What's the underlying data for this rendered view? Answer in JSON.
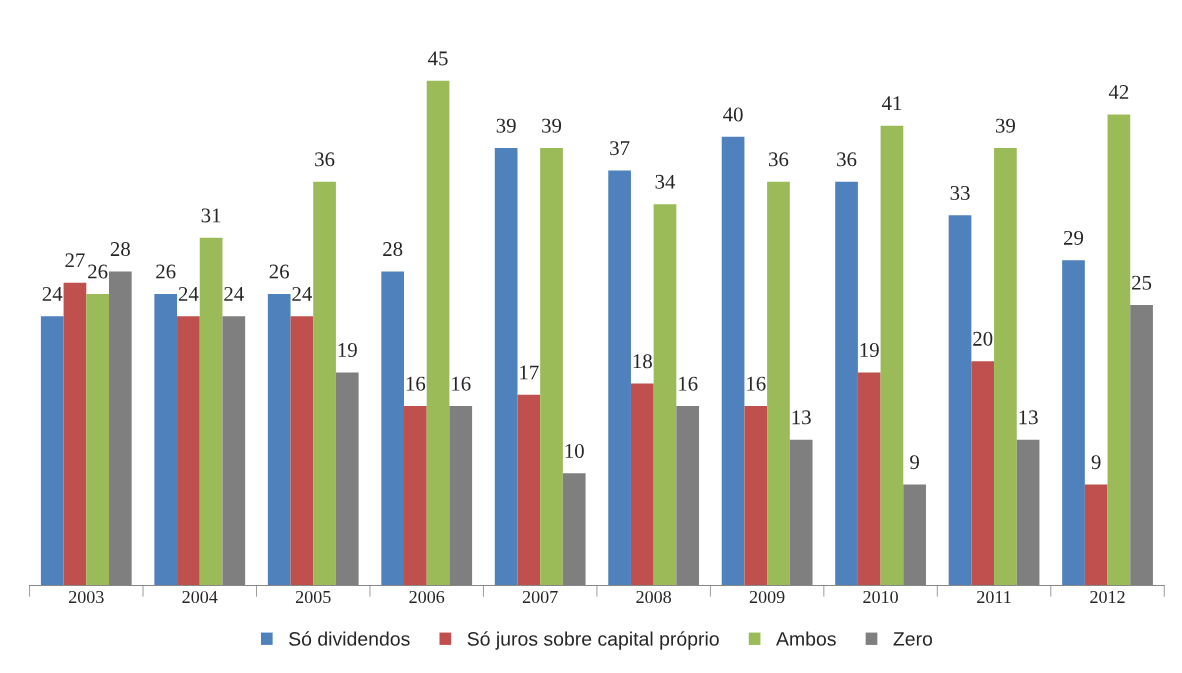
{
  "chart_data": {
    "type": "bar",
    "categories": [
      "2003",
      "2004",
      "2005",
      "2006",
      "2007",
      "2008",
      "2009",
      "2010",
      "2011",
      "2012"
    ],
    "series": [
      {
        "name": "Só dividendos",
        "color": "#4f81bd",
        "values": [
          24,
          26,
          26,
          28,
          39,
          37,
          40,
          36,
          33,
          29
        ]
      },
      {
        "name": "Só juros sobre capital próprio",
        "color": "#c0504d",
        "values": [
          27,
          24,
          24,
          16,
          17,
          18,
          16,
          19,
          20,
          9
        ]
      },
      {
        "name": "Ambos",
        "color": "#9bbb59",
        "values": [
          26,
          31,
          36,
          45,
          39,
          34,
          36,
          41,
          39,
          42
        ]
      },
      {
        "name": "Zero",
        "color": "#7f7f7f",
        "values": [
          28,
          24,
          19,
          16,
          10,
          16,
          13,
          9,
          13,
          25
        ]
      }
    ],
    "data_labels": true,
    "legend": "bottom",
    "grid": false
  }
}
